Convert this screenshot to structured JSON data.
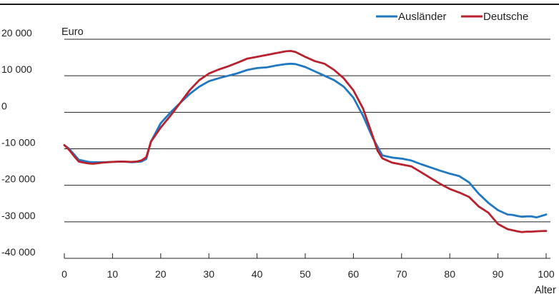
{
  "header_label": "",
  "chart_data": {
    "type": "line",
    "title": "",
    "ylabel": "Euro",
    "xlabel": "Alter",
    "xlim": [
      0,
      100
    ],
    "ylim": [
      -40000,
      20000
    ],
    "x_ticks": [
      0,
      10,
      20,
      30,
      40,
      50,
      60,
      70,
      80,
      90,
      100
    ],
    "x_tick_labels": [
      "0",
      "10",
      "20",
      "30",
      "40",
      "50",
      "60",
      "70",
      "80",
      "90",
      "100"
    ],
    "y_ticks": [
      20000,
      10000,
      0,
      -10000,
      -20000,
      -30000,
      -40000
    ],
    "y_tick_labels": [
      "20 000",
      "10 000",
      "0",
      "-10 000",
      "-20 000",
      "-30 000",
      "-40 000"
    ],
    "grid": "horizontal",
    "legend_position": "top-right",
    "colors": {
      "Ausländer": "#1f78c1",
      "Deutsche": "#b8212e"
    },
    "series": [
      {
        "name": "Ausländer",
        "x": [
          0,
          1,
          2,
          3,
          4,
          5,
          6,
          8,
          10,
          12,
          14,
          15,
          16,
          17,
          18,
          20,
          22,
          24,
          26,
          28,
          30,
          32,
          34,
          36,
          38,
          40,
          42,
          44,
          46,
          47,
          48,
          50,
          52,
          54,
          56,
          58,
          60,
          62,
          64,
          66,
          68,
          70,
          72,
          74,
          76,
          78,
          80,
          82,
          84,
          86,
          88,
          90,
          92,
          93,
          94,
          95,
          96,
          97,
          98,
          100
        ],
        "values": [
          -9000,
          -10000,
          -11500,
          -13000,
          -13300,
          -13600,
          -13700,
          -13700,
          -13600,
          -13500,
          -13700,
          -13600,
          -13500,
          -12800,
          -8000,
          -3000,
          -100,
          2500,
          5000,
          7000,
          8500,
          9300,
          10000,
          10700,
          11600,
          12100,
          12300,
          12800,
          13200,
          13300,
          13200,
          12400,
          11200,
          10000,
          8800,
          7000,
          4000,
          -1000,
          -7000,
          -11800,
          -12400,
          -12700,
          -13200,
          -14200,
          -15100,
          -16000,
          -16800,
          -17500,
          -19200,
          -22300,
          -24800,
          -26800,
          -28000,
          -28100,
          -28400,
          -28600,
          -28500,
          -28500,
          -28800,
          -28000
        ]
      },
      {
        "name": "Deutsche",
        "x": [
          0,
          1,
          2,
          3,
          4,
          5,
          6,
          8,
          10,
          12,
          14,
          15,
          16,
          17,
          18,
          20,
          22,
          24,
          26,
          28,
          30,
          32,
          34,
          36,
          38,
          40,
          42,
          44,
          46,
          47,
          48,
          50,
          52,
          54,
          56,
          58,
          60,
          62,
          64,
          65,
          66,
          68,
          70,
          72,
          74,
          76,
          78,
          80,
          82,
          84,
          86,
          88,
          90,
          92,
          94,
          95,
          96,
          97,
          98,
          100
        ],
        "values": [
          -9000,
          -10300,
          -12000,
          -13500,
          -13800,
          -14000,
          -14100,
          -13800,
          -13600,
          -13500,
          -13600,
          -13500,
          -13200,
          -12300,
          -8000,
          -4200,
          -1000,
          2500,
          6000,
          8800,
          10600,
          11700,
          12600,
          13600,
          14700,
          15200,
          15700,
          16200,
          16700,
          16800,
          16500,
          15200,
          14000,
          13300,
          11600,
          9300,
          6000,
          1000,
          -6500,
          -10500,
          -12600,
          -13800,
          -14300,
          -14800,
          -16400,
          -18000,
          -19600,
          -21000,
          -22000,
          -23200,
          -25800,
          -27500,
          -30600,
          -32000,
          -32600,
          -32800,
          -32700,
          -32700,
          -32600,
          -32500
        ]
      }
    ]
  }
}
